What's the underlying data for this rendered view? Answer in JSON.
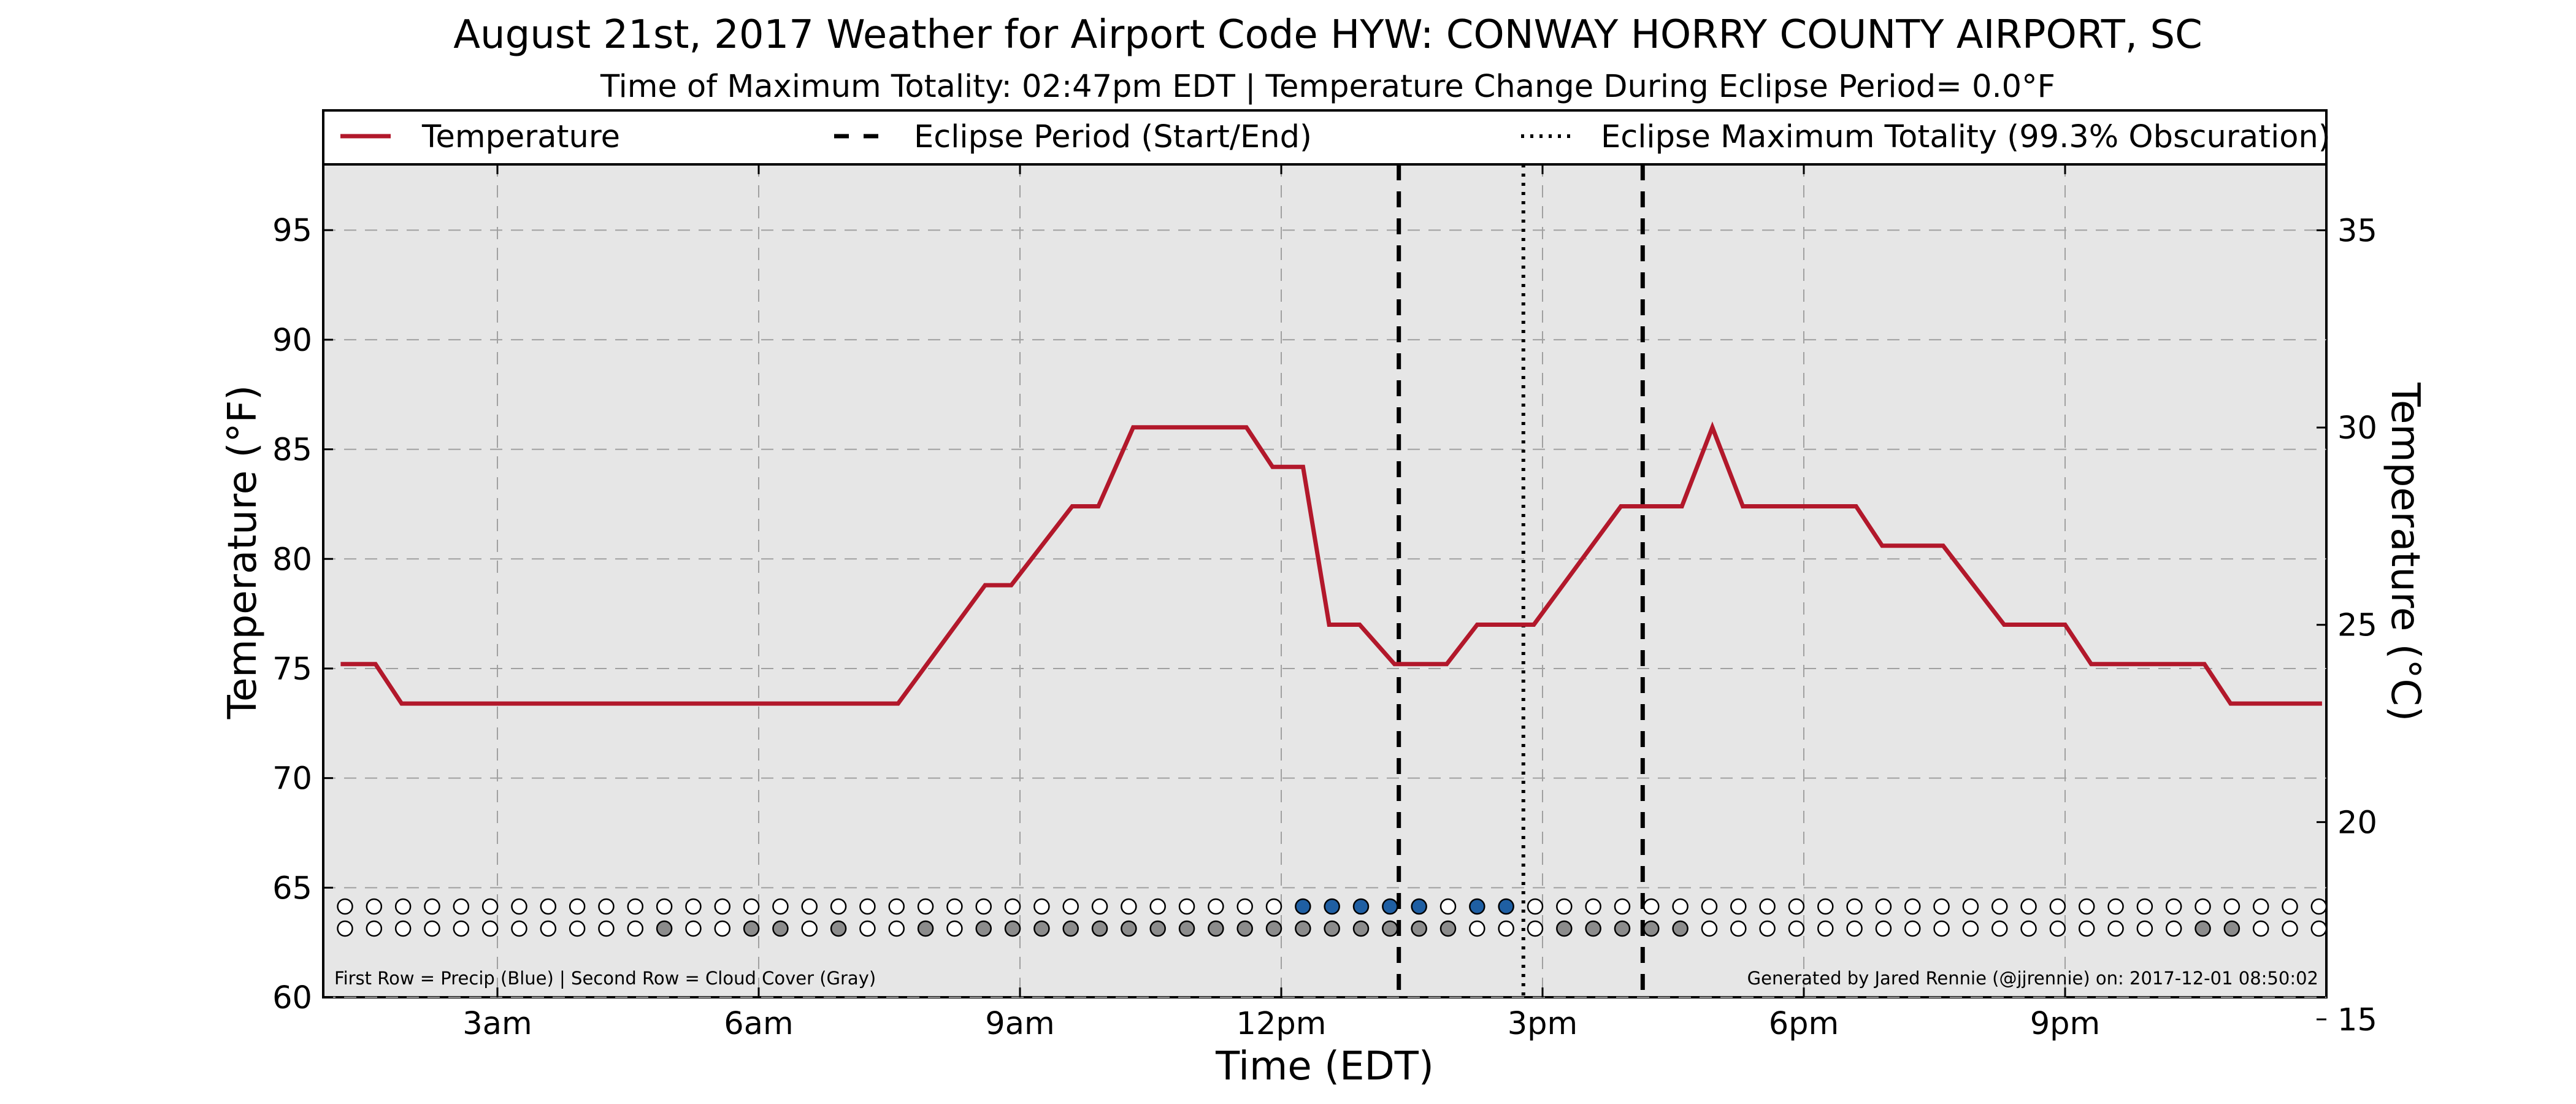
{
  "chart_data": {
    "type": "line",
    "title": "August 21st, 2017 Weather for Airport Code HYW: CONWAY HORRY COUNTY AIRPORT, SC",
    "subtitle": "Time of Maximum Totality: 02:47pm EDT | Temperature Change During Eclipse Period= 0.0°F",
    "xlabel": "Time (EDT)",
    "ylabel": "Temperature (°F)",
    "y2label": "Temperature (°C)",
    "xlim": [
      1.0,
      24.0
    ],
    "ylim": [
      60,
      98
    ],
    "y2lim": [
      15.56,
      36.67
    ],
    "grid": true,
    "legend_position": "top",
    "x_ticks": [
      {
        "x": 3,
        "label": "3am"
      },
      {
        "x": 6,
        "label": "6am"
      },
      {
        "x": 9,
        "label": "9am"
      },
      {
        "x": 12,
        "label": "12pm"
      },
      {
        "x": 15,
        "label": "3pm"
      },
      {
        "x": 18,
        "label": "6pm"
      },
      {
        "x": 21,
        "label": "9pm"
      }
    ],
    "y_ticks": [
      {
        "y": 60,
        "label": "60"
      },
      {
        "y": 65,
        "label": "65"
      },
      {
        "y": 70,
        "label": "70"
      },
      {
        "y": 75,
        "label": "75"
      },
      {
        "y": 80,
        "label": "80"
      },
      {
        "y": 85,
        "label": "85"
      },
      {
        "y": 90,
        "label": "90"
      },
      {
        "y": 95,
        "label": "95"
      }
    ],
    "y2_ticks": [
      {
        "y": 15,
        "label": "15"
      },
      {
        "y": 20,
        "label": "20"
      },
      {
        "y": 25,
        "label": "25"
      },
      {
        "y": 30,
        "label": "30"
      },
      {
        "y": 35,
        "label": "35"
      }
    ],
    "legend": [
      {
        "label": "Temperature",
        "style": "solid",
        "color": "#b2182b"
      },
      {
        "label": "Eclipse Period (Start/End)",
        "style": "dashed",
        "color": "#000000"
      },
      {
        "label": "Eclipse Maximum Totality (99.3% Obscuration)",
        "style": "dotted",
        "color": "#000000"
      }
    ],
    "series": [
      {
        "name": "Temperature",
        "color": "#b2182b",
        "points": [
          [
            1.2,
            75.2
          ],
          [
            1.6,
            75.2
          ],
          [
            1.9,
            73.4
          ],
          [
            7.6,
            73.4
          ],
          [
            8.6,
            78.8
          ],
          [
            8.9,
            78.8
          ],
          [
            9.6,
            82.4
          ],
          [
            9.9,
            82.4
          ],
          [
            10.3,
            86.0
          ],
          [
            11.6,
            86.0
          ],
          [
            11.9,
            84.2
          ],
          [
            12.25,
            84.2
          ],
          [
            12.55,
            77.0
          ],
          [
            12.9,
            77.0
          ],
          [
            13.3,
            75.2
          ],
          [
            13.9,
            75.2
          ],
          [
            14.25,
            77.0
          ],
          [
            14.9,
            77.0
          ],
          [
            15.9,
            82.4
          ],
          [
            16.6,
            82.4
          ],
          [
            16.95,
            86.0
          ],
          [
            17.3,
            82.4
          ],
          [
            18.6,
            82.4
          ],
          [
            18.9,
            80.6
          ],
          [
            19.6,
            80.6
          ],
          [
            20.3,
            77.0
          ],
          [
            21.0,
            77.0
          ],
          [
            21.3,
            75.2
          ],
          [
            22.6,
            75.2
          ],
          [
            22.9,
            73.4
          ],
          [
            23.95,
            73.4
          ]
        ]
      }
    ],
    "eclipse_start": 13.35,
    "eclipse_end": 16.15,
    "eclipse_max": 14.78,
    "colors": {
      "plot_background": "#e6e6e6",
      "temperature_line": "#b2182b",
      "precip_marker": "#1f5fa3",
      "cloud_marker": "#8c8c8c",
      "empty_marker": "#ffffff"
    },
    "marker_rows": {
      "start_x": 1.25,
      "step": 0.3333,
      "count": 69,
      "precip_indices": [
        33,
        34,
        35,
        36,
        37,
        39,
        40
      ],
      "cloud_indices": [
        11,
        14,
        15,
        17,
        20,
        22,
        23,
        24,
        25,
        26,
        27,
        28,
        29,
        30,
        31,
        32,
        33,
        34,
        35,
        36,
        37,
        38,
        42,
        43,
        44,
        45,
        46,
        64,
        65
      ]
    },
    "footnote_left": "First Row = Precip (Blue) | Second Row = Cloud Cover (Gray)",
    "footnote_right": "Generated by Jared Rennie (@jjrennie) on: 2017-12-01 08:50:02"
  }
}
